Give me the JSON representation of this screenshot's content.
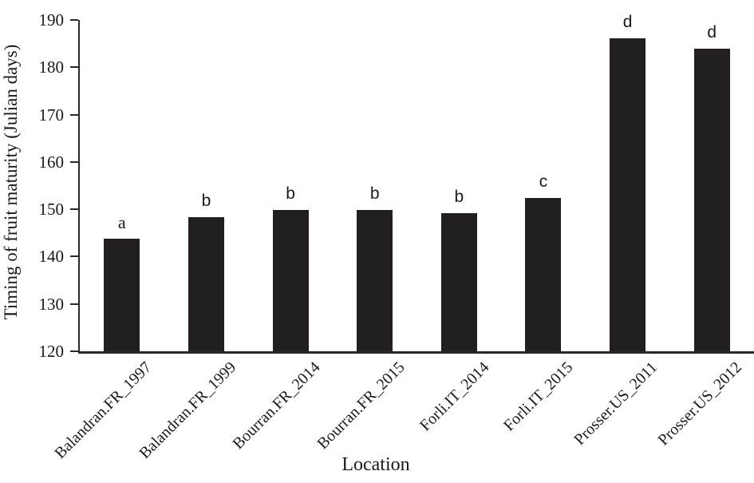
{
  "chart_data": {
    "type": "bar",
    "title": "",
    "xlabel": "Location",
    "ylabel": "Timing of fruit maturity (Julian days)",
    "categories": [
      "Balandran.FR_1997",
      "Balandran.FR_1999",
      "Bourran.FR_2014",
      "Bourran.FR_2015",
      "Forli.IT_2014",
      "Forli.IT_2015",
      "Prosser.US_2011",
      "Prosser.US_2012"
    ],
    "values": [
      143.8,
      148.4,
      149.8,
      149.8,
      149.1,
      152.4,
      186.1,
      184.0
    ],
    "bar_labels": [
      "a",
      "b",
      "b",
      "b",
      "b",
      "c",
      "d",
      "d"
    ],
    "ylim": [
      120,
      190
    ],
    "yticks": [
      120,
      130,
      140,
      150,
      160,
      170,
      180,
      190
    ],
    "grid": "off",
    "legend": "none",
    "bar_color": "#231f20",
    "axis_color": "#2b2829"
  }
}
